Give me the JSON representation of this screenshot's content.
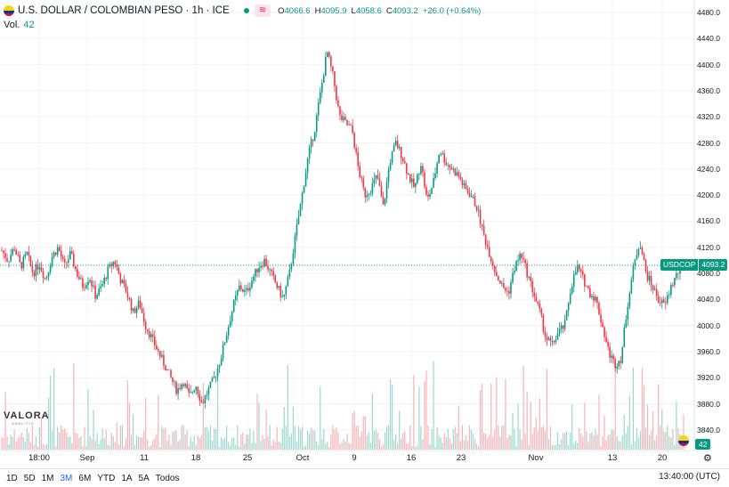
{
  "legend": {
    "title": "U.S. DOLLAR / COLOMBIAN PESO · 1h · ICE",
    "pill": "≋",
    "open_label": "O",
    "open": "4066.6",
    "high_label": "H",
    "high": "4095.9",
    "low_label": "L",
    "low": "4058.6",
    "close_label": "C",
    "close": "4093.2",
    "change": "+26.0 (+0.64%)"
  },
  "volume": {
    "label": "Vol.",
    "value": "42"
  },
  "watermark": {
    "brand": "VALORA",
    "sub": "ANALITIK"
  },
  "price_tag": {
    "symbol": "USDCOP",
    "value": "4093.2"
  },
  "vol_tag": "42",
  "time_axis": [
    "18:00",
    "Sep",
    "11",
    "18",
    "25",
    "Oct",
    "9",
    "16",
    "23",
    "Nov",
    "13",
    "20"
  ],
  "price_axis": [
    "4480.0",
    "4440.0",
    "4400.0",
    "4360.0",
    "4320.0",
    "4280.0",
    "4240.0",
    "4200.0",
    "4160.0",
    "4120.0",
    "4080.0",
    "4040.0",
    "4000.0",
    "3960.0",
    "3920.0",
    "3880.0",
    "3840.0"
  ],
  "ranges": [
    "1D",
    "5D",
    "1M",
    "3M",
    "6M",
    "YTD",
    "1A",
    "5A",
    "Todos"
  ],
  "active_range": "3M",
  "clock": "13:40:00 (UTC)",
  "colors": {
    "up": "#089981",
    "down": "#f23645",
    "grid": "#f0f3fa"
  },
  "chart_data": {
    "type": "candlestick",
    "ylim": [
      3800,
      4500
    ],
    "last_price": 4093.2,
    "path": [
      4115,
      4100,
      4120,
      4090,
      4110,
      4080,
      4095,
      4070,
      4105,
      4120,
      4090,
      4110,
      4080,
      4060,
      4075,
      4045,
      4060,
      4085,
      4100,
      4070,
      4050,
      4020,
      4035,
      4000,
      3980,
      3960,
      3940,
      3920,
      3900,
      3915,
      3890,
      3910,
      3880,
      3900,
      3920,
      3950,
      3990,
      4030,
      4060,
      4050,
      4070,
      4090,
      4100,
      4080,
      4060,
      4040,
      4080,
      4140,
      4200,
      4260,
      4300,
      4360,
      4420,
      4380,
      4320,
      4310,
      4300,
      4240,
      4200,
      4210,
      4230,
      4180,
      4250,
      4280,
      4260,
      4230,
      4210,
      4250,
      4190,
      4220,
      4270,
      4250,
      4240,
      4230,
      4210,
      4200,
      4180,
      4140,
      4110,
      4080,
      4060,
      4050,
      4090,
      4110,
      4080,
      4050,
      4020,
      3980,
      3970,
      3990,
      4000,
      4060,
      4090,
      4070,
      4050,
      4040,
      4000,
      3960,
      3940,
      3950,
      4030,
      4090,
      4130,
      4080,
      4060,
      4040,
      4030,
      4060,
      4080,
      4093
    ]
  }
}
